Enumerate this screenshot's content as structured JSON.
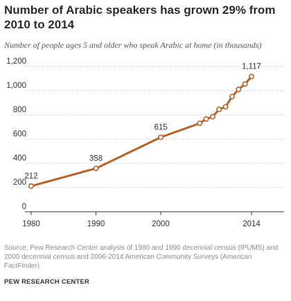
{
  "header": {
    "title": "Number of Arabic speakers has grown 29% from 2010 to 2014",
    "subtitle": "Number of people ages 5 and older who speak Arabic at home (in thousands)"
  },
  "footer": {
    "source": "Source: Pew Research Center analysis of 1980 and 1990 decennial census (IPUMS) and 2000 decennial census and 2006-2014 American Community Surveys (American FactFinder)",
    "brand": "PEW RESEARCH CENTER"
  },
  "colors": {
    "line": "#b0642a",
    "marker_fill": "#ffffff",
    "grid": "#bbbbbb",
    "axis": "#333333",
    "text": "#333333"
  },
  "chart_data": {
    "type": "line",
    "x": [
      1980,
      1990,
      2000,
      2006,
      2007,
      2008,
      2009,
      2010,
      2011,
      2012,
      2013,
      2014
    ],
    "series": [
      {
        "values": [
          212,
          358,
          615,
          730,
          766,
          785,
          845,
          866,
          951,
          1010,
          1055,
          1117
        ]
      }
    ],
    "data_labels": [
      {
        "x": 1980,
        "text": "212"
      },
      {
        "x": 1990,
        "text": "358"
      },
      {
        "x": 2000,
        "text": "615"
      },
      {
        "x": 2014,
        "text": "1,117"
      }
    ],
    "x_ticks": [
      1980,
      1990,
      2000,
      2014
    ],
    "x_tick_labels": [
      "1980",
      "1990",
      "2000",
      "2014"
    ],
    "y_ticks": [
      0,
      200,
      400,
      600,
      800,
      1000,
      1200
    ],
    "y_tick_labels": [
      "0",
      "200",
      "400",
      "600",
      "800",
      "1,000",
      "1,200"
    ],
    "xlim": [
      1980,
      2014
    ],
    "ylim": [
      0,
      1200
    ],
    "grid": "horizontal dotted",
    "xlabel": "",
    "ylabel": ""
  }
}
